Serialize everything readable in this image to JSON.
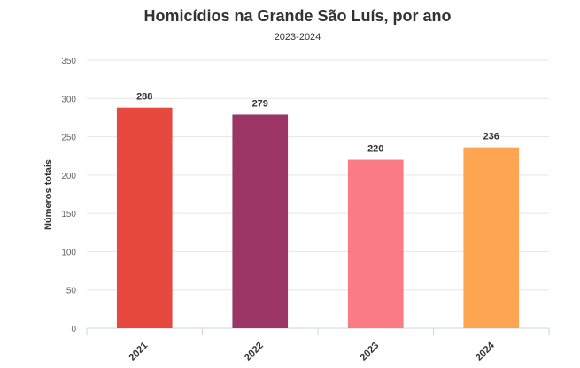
{
  "chart_data": {
    "type": "bar",
    "title": "Homicídios na Grande São Luís, por ano",
    "subtitle": "2023-2024",
    "xlabel": "",
    "ylabel": "Números totais",
    "categories": [
      "2021",
      "2022",
      "2023",
      "2024"
    ],
    "values": [
      288,
      279,
      220,
      236
    ],
    "colors": [
      "#e8493f",
      "#9b3565",
      "#fb7b85",
      "#fea551"
    ],
    "ylim": [
      0,
      350
    ],
    "yticks": [
      0,
      50,
      100,
      150,
      200,
      250,
      300,
      350
    ],
    "grid": true,
    "data_labels": true,
    "legend": false
  }
}
